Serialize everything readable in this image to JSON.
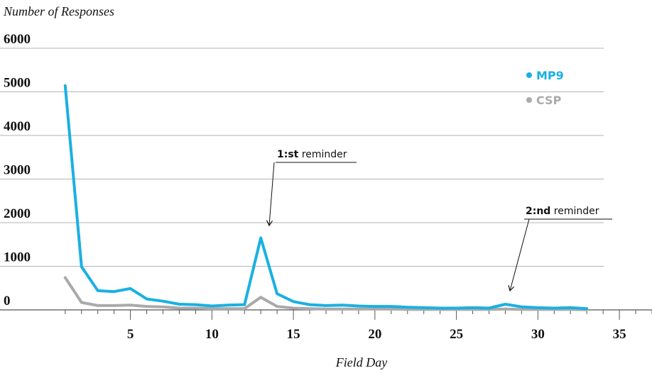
{
  "chart_data": {
    "type": "line",
    "ylabel": "Number of Responses",
    "xlabel": "Field Day",
    "ylim": [
      0,
      6000
    ],
    "yticks": [
      0,
      1000,
      2000,
      3000,
      4000,
      5000,
      6000
    ],
    "yticks_labels": [
      "0",
      "1000",
      "2000",
      "3000",
      "4000",
      "5000",
      "6000"
    ],
    "xlim": [
      -3,
      37
    ],
    "xticks": [
      5,
      10,
      15,
      20,
      25,
      30,
      35
    ],
    "xticks_labels": [
      "5",
      "10",
      "15",
      "20",
      "25",
      "30",
      "35"
    ],
    "grid": "horizontal",
    "legend": "top-right",
    "x": [
      1,
      2,
      3,
      4,
      5,
      6,
      7,
      8,
      9,
      10,
      11,
      12,
      13,
      14,
      15,
      16,
      17,
      18,
      19,
      20,
      21,
      22,
      23,
      24,
      25,
      26,
      27,
      28,
      29,
      30,
      31,
      32,
      33
    ],
    "series": [
      {
        "name": "MP9",
        "color": "#1AB0E2",
        "values": [
          5140,
          990,
          440,
          420,
          490,
          250,
          200,
          130,
          120,
          90,
          110,
          120,
          1650,
          370,
          190,
          120,
          100,
          110,
          90,
          80,
          80,
          60,
          50,
          40,
          40,
          50,
          40,
          130,
          70,
          50,
          40,
          50,
          30
        ]
      },
      {
        "name": "CSP",
        "color": "#AAAAAA",
        "values": [
          740,
          170,
          100,
          100,
          110,
          80,
          70,
          40,
          40,
          30,
          30,
          30,
          290,
          80,
          40,
          30,
          20,
          20,
          20,
          20,
          20,
          10,
          10,
          10,
          10,
          10,
          10,
          20,
          10,
          10,
          10,
          10,
          5
        ]
      }
    ],
    "annotations": [
      {
        "bold": "1:st",
        "text": " reminder",
        "x": 13
      },
      {
        "bold": "2:nd",
        "text": " reminder",
        "x": 28
      }
    ]
  }
}
